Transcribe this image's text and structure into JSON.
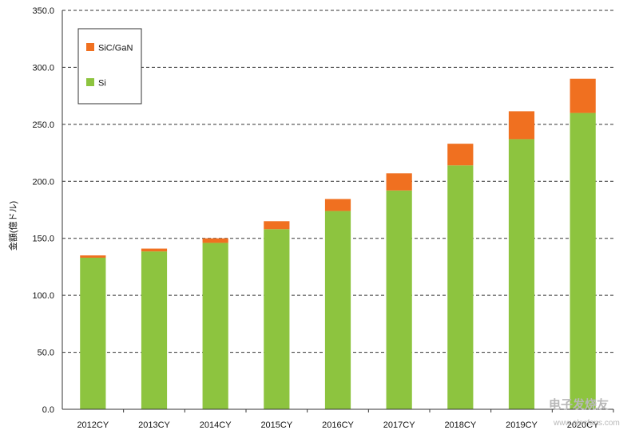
{
  "chart_data": {
    "type": "bar",
    "stacked": true,
    "categories": [
      "2012CY",
      "2013CY",
      "2014CY",
      "2015CY",
      "2016CY",
      "2017CY",
      "2018CY",
      "2019CY",
      "2020CY"
    ],
    "series": [
      {
        "name": "Si",
        "color": "#8DC43F",
        "values": [
          133.0,
          138.5,
          146.0,
          158.0,
          174.0,
          192.0,
          214.0,
          237.0,
          260.0
        ]
      },
      {
        "name": "SiC/GaN",
        "color": "#F07020",
        "values": [
          2.0,
          2.5,
          4.0,
          7.0,
          10.5,
          15.0,
          19.0,
          24.5,
          30.0
        ]
      }
    ],
    "ylabel": "金額(億ドル)",
    "ylim": [
      0,
      350
    ],
    "ytick_values": [
      0,
      50,
      100,
      150,
      200,
      250,
      300,
      350
    ],
    "ytick_labels": [
      "0.0",
      "50.0",
      "100.0",
      "150.0",
      "200.0",
      "250.0",
      "300.0",
      "350.0"
    ],
    "grid": "dashed horizontal",
    "legend_position": "top-left",
    "legend_order": [
      "SiC/GaN",
      "Si"
    ]
  },
  "watermark": {
    "text": "电子发烧友",
    "url_text": "www.elecfans.com"
  }
}
